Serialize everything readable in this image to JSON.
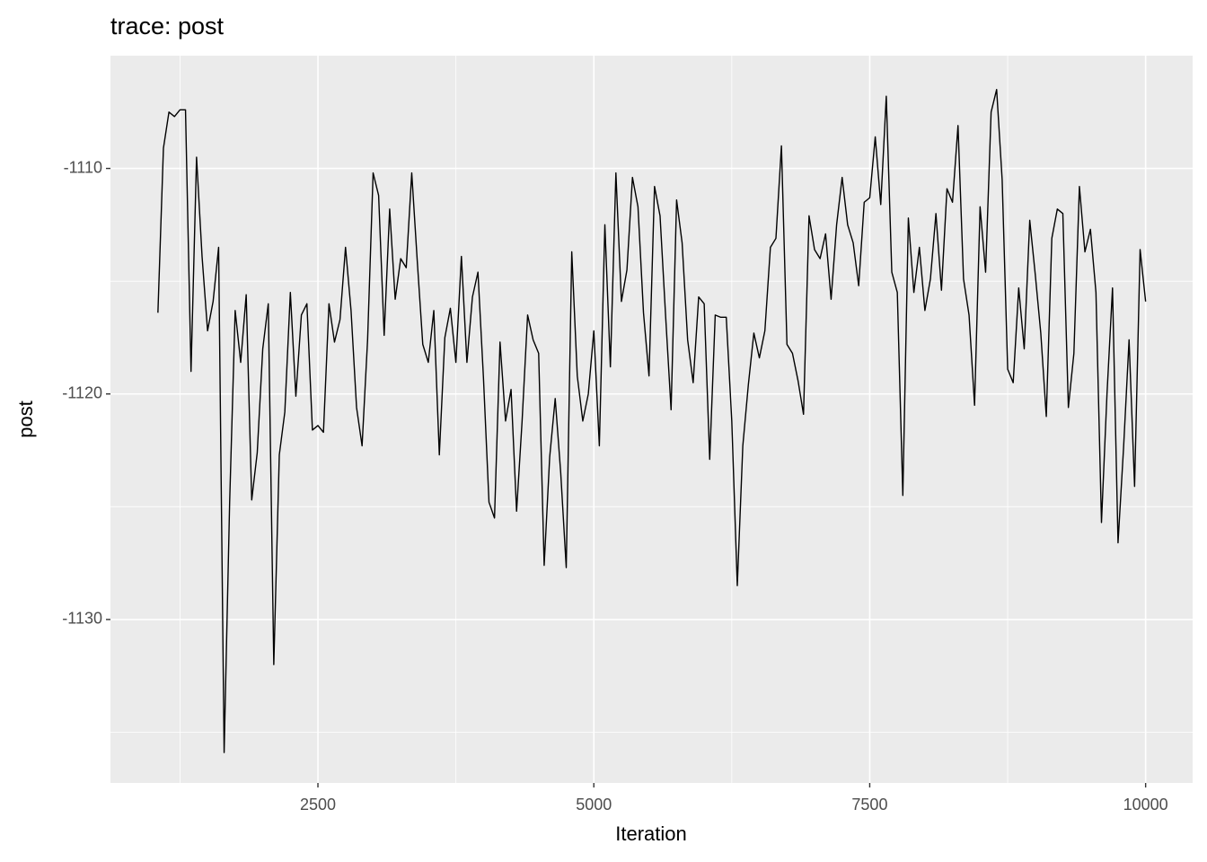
{
  "chart_data": {
    "type": "line",
    "title": "trace: post",
    "x_label": "Iteration",
    "y_label": "post",
    "x": [
      1050,
      1100,
      1150,
      1200,
      1250,
      1300,
      1350,
      1400,
      1450,
      1500,
      1550,
      1600,
      1650,
      1700,
      1750,
      1800,
      1850,
      1900,
      1950,
      2000,
      2050,
      2100,
      2150,
      2200,
      2250,
      2300,
      2350,
      2400,
      2450,
      2500,
      2550,
      2600,
      2650,
      2700,
      2750,
      2800,
      2850,
      2900,
      2950,
      3000,
      3050,
      3100,
      3150,
      3200,
      3250,
      3300,
      3350,
      3400,
      3450,
      3500,
      3550,
      3600,
      3650,
      3700,
      3750,
      3800,
      3850,
      3900,
      3950,
      4000,
      4050,
      4100,
      4150,
      4200,
      4250,
      4300,
      4350,
      4400,
      4450,
      4500,
      4550,
      4600,
      4650,
      4700,
      4750,
      4800,
      4850,
      4900,
      4950,
      5000,
      5050,
      5100,
      5150,
      5200,
      5250,
      5300,
      5350,
      5400,
      5450,
      5500,
      5550,
      5600,
      5650,
      5700,
      5750,
      5800,
      5850,
      5900,
      5950,
      6000,
      6050,
      6100,
      6150,
      6200,
      6250,
      6300,
      6350,
      6400,
      6450,
      6500,
      6550,
      6600,
      6650,
      6700,
      6750,
      6800,
      6850,
      6900,
      6950,
      7000,
      7050,
      7100,
      7150,
      7200,
      7250,
      7300,
      7350,
      7400,
      7450,
      7500,
      7550,
      7600,
      7650,
      7700,
      7750,
      7800,
      7850,
      7900,
      7950,
      8000,
      8050,
      8100,
      8150,
      8200,
      8250,
      8300,
      8350,
      8400,
      8450,
      8500,
      8550,
      8600,
      8650,
      8700,
      8750,
      8800,
      8850,
      8900,
      8950,
      9000,
      9050,
      9100,
      9150,
      9200,
      9250,
      9300,
      9350,
      9400,
      9450,
      9500,
      9550,
      9600,
      9650,
      9700,
      9750,
      9800,
      9850,
      9900,
      9950,
      10000
    ],
    "series": [
      {
        "name": "post",
        "color": "#000000",
        "values": [
          -1116.4,
          -1109.1,
          -1107.5,
          -1107.7,
          -1107.4,
          -1107.4,
          -1119.0,
          -1109.5,
          -1113.9,
          -1117.2,
          -1115.9,
          -1113.5,
          -1135.9,
          -1124.8,
          -1116.3,
          -1118.6,
          -1115.6,
          -1124.7,
          -1122.6,
          -1118.0,
          -1116.0,
          -1132.0,
          -1122.7,
          -1120.8,
          -1115.5,
          -1120.1,
          -1116.5,
          -1116.0,
          -1121.6,
          -1121.4,
          -1121.7,
          -1116.0,
          -1117.7,
          -1116.7,
          -1113.5,
          -1116.3,
          -1120.6,
          -1122.3,
          -1117.6,
          -1110.2,
          -1111.2,
          -1117.4,
          -1111.8,
          -1115.8,
          -1114.0,
          -1114.4,
          -1110.2,
          -1114.1,
          -1117.8,
          -1118.6,
          -1116.3,
          -1122.7,
          -1117.5,
          -1116.2,
          -1118.6,
          -1113.9,
          -1118.6,
          -1115.7,
          -1114.6,
          -1119.3,
          -1124.8,
          -1125.5,
          -1117.7,
          -1121.2,
          -1119.8,
          -1125.2,
          -1121.2,
          -1116.5,
          -1117.6,
          -1118.2,
          -1127.6,
          -1122.8,
          -1120.2,
          -1123.5,
          -1127.7,
          -1113.7,
          -1119.2,
          -1121.2,
          -1120.0,
          -1117.2,
          -1122.3,
          -1112.5,
          -1118.8,
          -1110.2,
          -1115.9,
          -1114.5,
          -1110.4,
          -1111.7,
          -1116.4,
          -1119.2,
          -1110.8,
          -1112.1,
          -1116.5,
          -1120.7,
          -1111.4,
          -1113.3,
          -1117.6,
          -1119.5,
          -1115.7,
          -1116.0,
          -1122.9,
          -1116.5,
          -1116.6,
          -1116.6,
          -1121.2,
          -1128.5,
          -1122.3,
          -1119.6,
          -1117.3,
          -1118.4,
          -1117.2,
          -1113.5,
          -1113.1,
          -1109.0,
          -1117.8,
          -1118.2,
          -1119.4,
          -1120.9,
          -1112.1,
          -1113.6,
          -1114.0,
          -1112.9,
          -1115.8,
          -1112.5,
          -1110.4,
          -1112.5,
          -1113.3,
          -1115.2,
          -1111.5,
          -1111.3,
          -1108.6,
          -1111.6,
          -1106.8,
          -1114.6,
          -1115.5,
          -1124.5,
          -1112.2,
          -1115.5,
          -1113.5,
          -1116.3,
          -1114.9,
          -1112.0,
          -1115.4,
          -1110.9,
          -1111.5,
          -1108.1,
          -1114.9,
          -1116.5,
          -1120.5,
          -1111.7,
          -1114.6,
          -1107.5,
          -1106.5,
          -1110.5,
          -1118.9,
          -1119.5,
          -1115.3,
          -1118.0,
          -1112.3,
          -1114.7,
          -1117.3,
          -1121.0,
          -1113.1,
          -1111.8,
          -1112.0,
          -1120.6,
          -1118.2,
          -1110.8,
          -1113.7,
          -1112.7,
          -1115.5,
          -1125.7,
          -1120.0,
          -1115.3,
          -1126.6,
          -1122.4,
          -1117.6,
          -1124.1,
          -1113.6,
          -1115.9
        ]
      }
    ],
    "xlim": [
      620,
      10426
    ],
    "xticks": [
      2500,
      5000,
      7500,
      10000
    ],
    "ylim": [
      -1137.25,
      -1105.0
    ],
    "yticks": [
      -1130,
      -1120,
      -1110
    ],
    "grid": true
  }
}
